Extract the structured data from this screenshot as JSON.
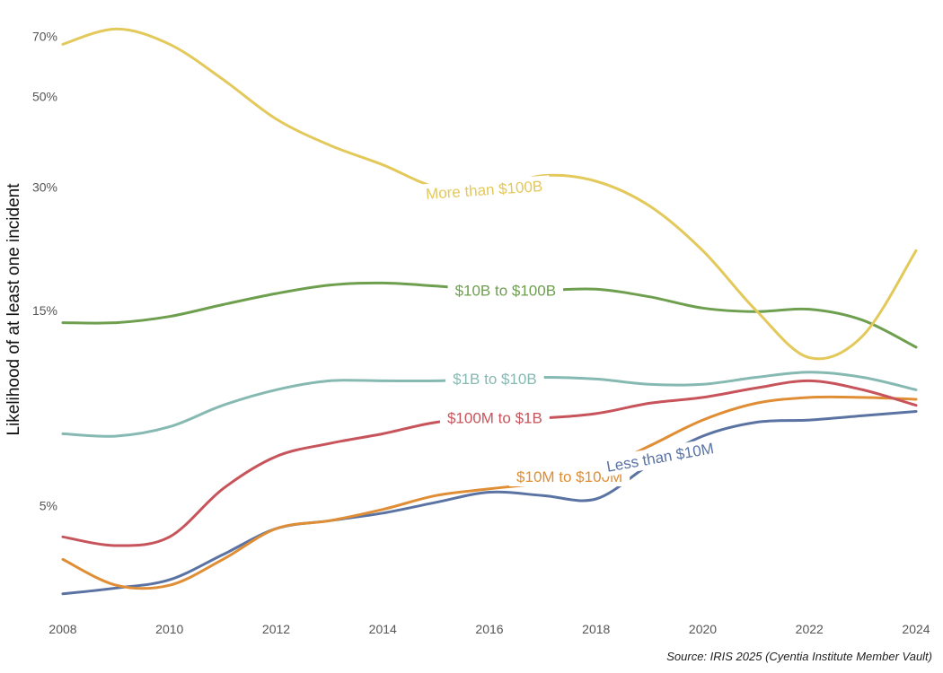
{
  "chart_data": {
    "type": "line",
    "title": "",
    "xlabel": "",
    "ylabel": "Likelihood of at least one incident",
    "y_scale": "log",
    "x": [
      2008,
      2009,
      2010,
      2011,
      2012,
      2013,
      2014,
      2015,
      2016,
      2017,
      2018,
      2019,
      2020,
      2021,
      2022,
      2023,
      2024
    ],
    "x_ticks": [
      "2008",
      "2010",
      "2012",
      "2014",
      "2016",
      "2018",
      "2020",
      "2022",
      "2024"
    ],
    "y_ticks": [
      "5%",
      "15%",
      "30%",
      "50%",
      "70%"
    ],
    "y_tick_values": [
      5,
      15,
      30,
      50,
      70
    ],
    "xlim": [
      2008,
      2024
    ],
    "ylim": [
      3,
      72
    ],
    "grid": false,
    "legend": "inline labels on lines",
    "series": [
      {
        "name": "More than $100B",
        "color": "#e3c85a",
        "values": [
          67,
          73,
          67,
          55,
          44,
          38,
          34,
          30,
          29.5,
          32,
          31,
          27,
          21,
          15,
          11.5,
          13,
          21
        ]
      },
      {
        "name": "$10B to $100B",
        "color": "#6e9f4e",
        "values": [
          14.0,
          14.0,
          14.5,
          15.5,
          16.5,
          17.3,
          17.5,
          17.2,
          16.8,
          16.8,
          16.9,
          16.2,
          15.2,
          14.9,
          15.1,
          14.2,
          12.2
        ]
      },
      {
        "name": "$1B to $10B",
        "color": "#86b9b2",
        "values": [
          7.5,
          7.4,
          7.8,
          8.8,
          9.6,
          10.1,
          10.1,
          10.1,
          10.2,
          10.3,
          10.2,
          9.9,
          9.9,
          10.3,
          10.6,
          10.3,
          9.6
        ]
      },
      {
        "name": "$100M to $1B",
        "color": "#c7545b",
        "values": [
          4.2,
          4.0,
          4.2,
          5.5,
          6.6,
          7.1,
          7.5,
          8.0,
          8.2,
          8.2,
          8.4,
          8.9,
          9.2,
          9.7,
          10.1,
          9.6,
          8.8
        ]
      },
      {
        "name": "$10M to $100M",
        "color": "#e08e35",
        "values": [
          3.7,
          3.2,
          3.2,
          3.7,
          4.4,
          4.6,
          4.9,
          5.3,
          5.5,
          5.7,
          6.1,
          7.0,
          8.1,
          8.9,
          9.2,
          9.2,
          9.1
        ]
      },
      {
        "name": "Less than $10M",
        "color": "#5a73a3",
        "values": [
          3.05,
          3.15,
          3.3,
          3.8,
          4.4,
          4.6,
          4.8,
          5.1,
          5.4,
          5.3,
          5.2,
          6.3,
          7.4,
          8.0,
          8.1,
          8.3,
          8.5
        ]
      }
    ]
  },
  "source": "Source: IRIS 2025 (Cyentia Institute Member Vault)"
}
